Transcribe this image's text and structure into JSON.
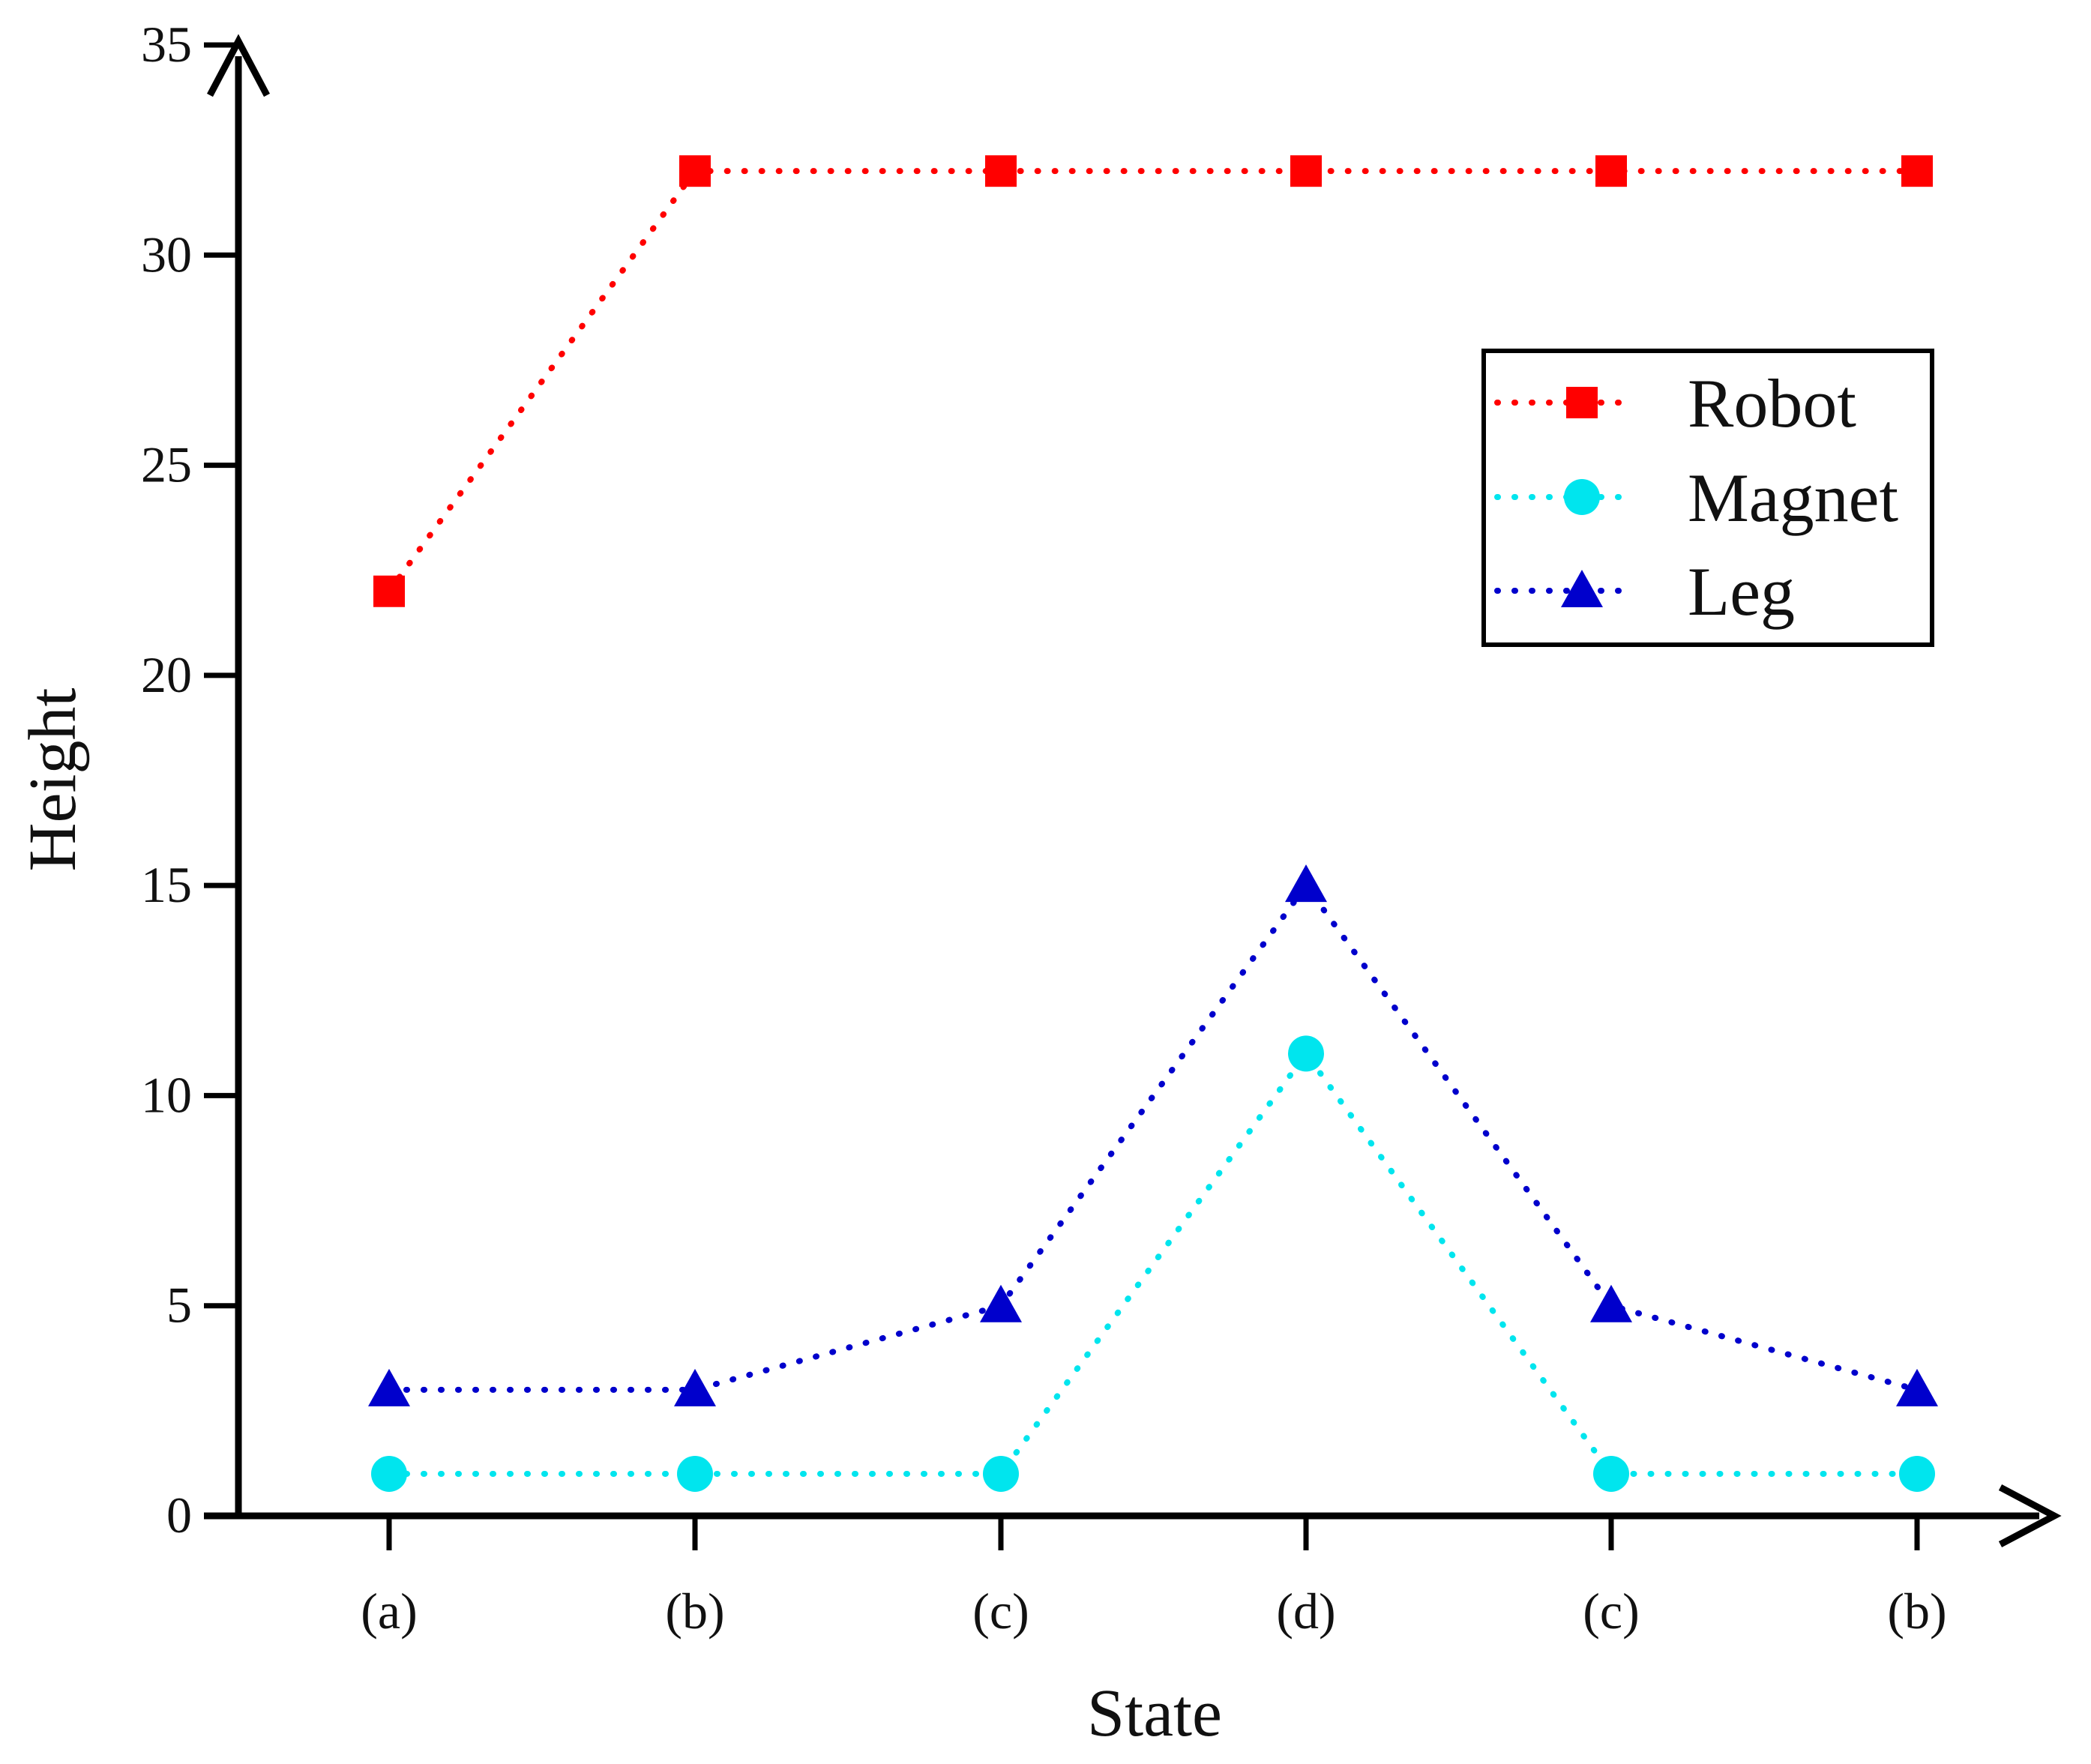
{
  "chart_data": {
    "type": "line",
    "xlabel": "State",
    "ylabel": "Height",
    "categories": [
      "(a)",
      "(b)",
      "(c)",
      "(d)",
      "(c)",
      "(b)"
    ],
    "ylim": [
      0,
      35
    ],
    "yticks": [
      "0",
      "5",
      "10",
      "15",
      "20",
      "25",
      "30",
      "35"
    ],
    "ytick_values": [
      0,
      5,
      10,
      15,
      20,
      25,
      30,
      35
    ],
    "grid": false,
    "legend_position": "top-right",
    "series": [
      {
        "name": "Robot",
        "values": [
          22,
          32,
          32,
          32,
          32,
          32
        ],
        "color": "#ff0000",
        "marker": "square",
        "line_style": "dotted"
      },
      {
        "name": "Magnet",
        "values": [
          1,
          1,
          1,
          11,
          1,
          1
        ],
        "color": "#00e5ee",
        "marker": "circle",
        "line_style": "dotted"
      },
      {
        "name": "Leg",
        "values": [
          3,
          3,
          5,
          15,
          5,
          3
        ],
        "color": "#0000cc",
        "marker": "triangle",
        "line_style": "dotted"
      }
    ]
  }
}
